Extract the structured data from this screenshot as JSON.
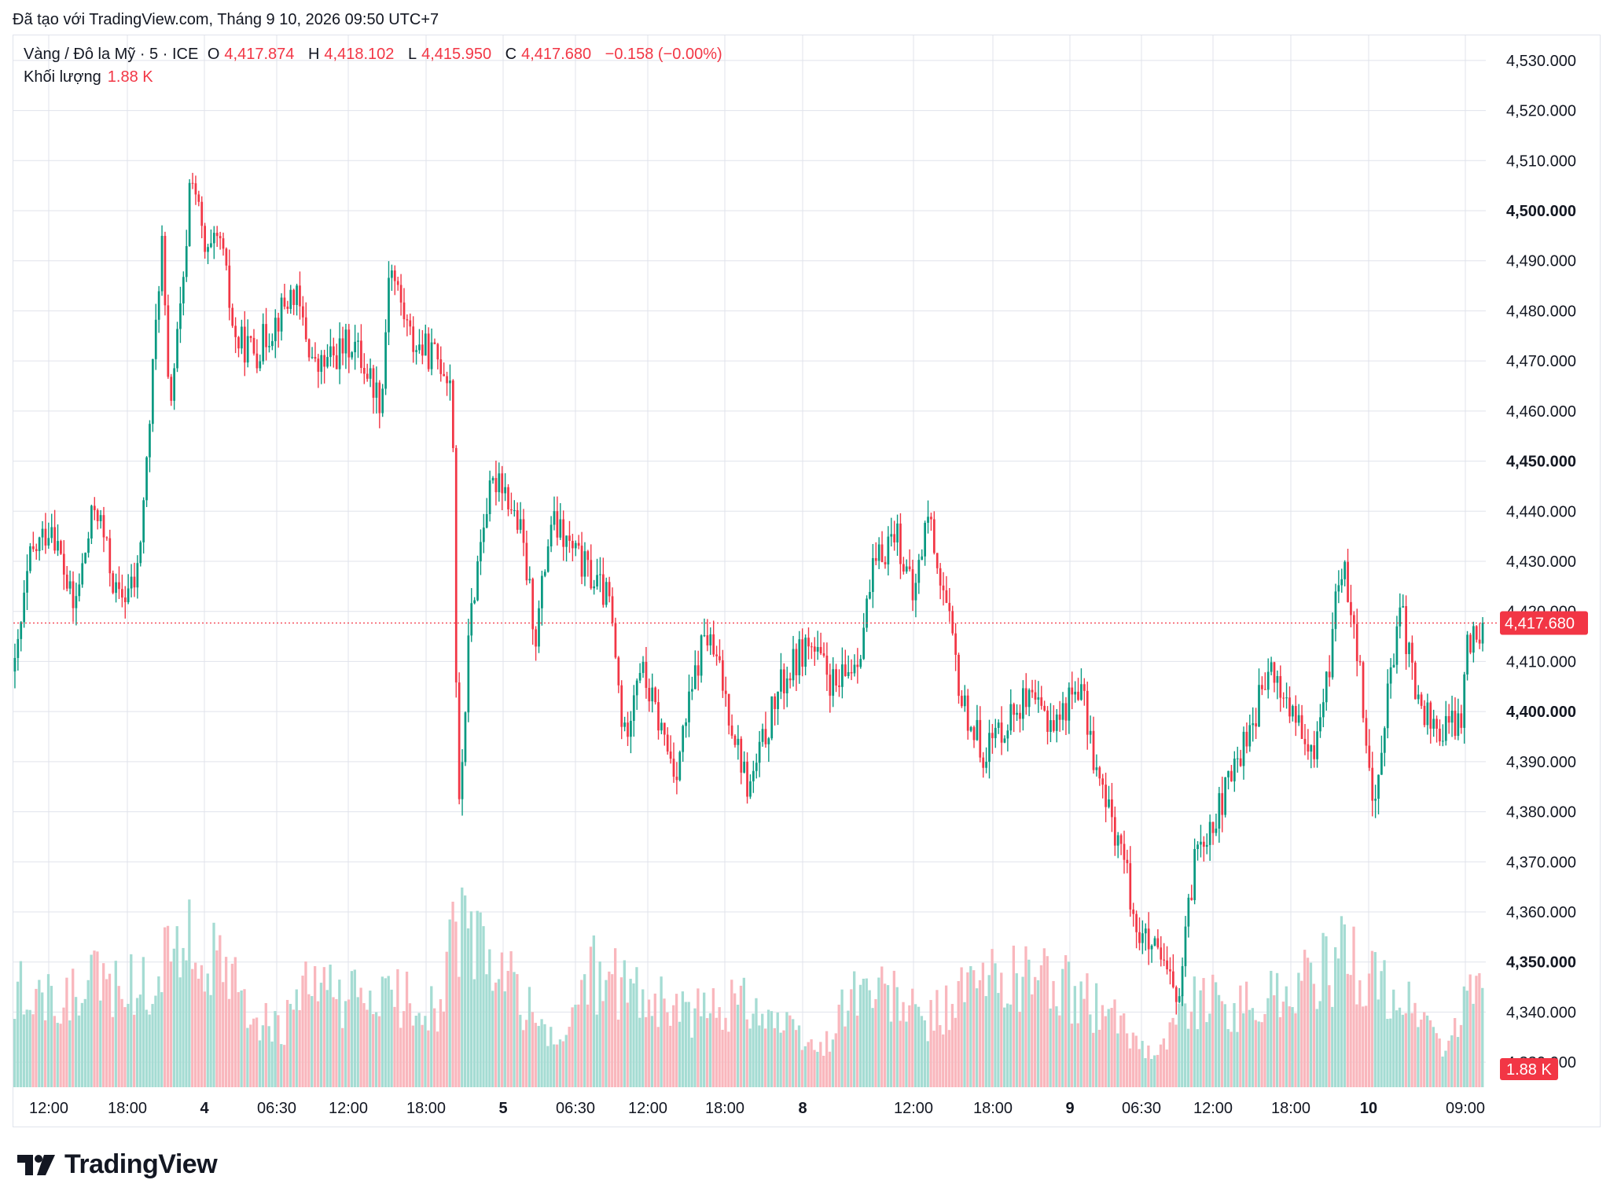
{
  "header": {
    "created_with": "Đã tạo với TradingView.com, Tháng 9 10, 2026 09:50 UTC+7"
  },
  "legend": {
    "symbol": "Vàng / Đô la Mỹ · 5 · ICE",
    "open_label": "O",
    "open": "4,417.874",
    "high_label": "H",
    "high": "4,418.102",
    "low_label": "L",
    "low": "4,415.950",
    "close_label": "C",
    "close": "4,417.680",
    "change": "−0.158 (−0.00%)",
    "volume_label": "Khối lượng",
    "volume": "1.88 K"
  },
  "colors": {
    "up": "#089981",
    "down": "#f23645",
    "up_vol": "#a5dcd3",
    "down_vol": "#f9b7bd",
    "grid": "#e0e3eb"
  },
  "logo": {
    "name": "tradingview-logo",
    "text": "TradingView"
  },
  "chart_data": {
    "type": "candlestick",
    "interval": "5",
    "y_axis": {
      "ylim": [
        4325,
        4535
      ],
      "ticks": [
        {
          "label": "4,530.000",
          "value": 4530,
          "bold": false
        },
        {
          "label": "4,520.000",
          "value": 4520,
          "bold": false
        },
        {
          "label": "4,510.000",
          "value": 4510,
          "bold": false
        },
        {
          "label": "4,500.000",
          "value": 4500,
          "bold": true
        },
        {
          "label": "4,490.000",
          "value": 4490,
          "bold": false
        },
        {
          "label": "4,480.000",
          "value": 4480,
          "bold": false
        },
        {
          "label": "4,470.000",
          "value": 4470,
          "bold": false
        },
        {
          "label": "4,460.000",
          "value": 4460,
          "bold": false
        },
        {
          "label": "4,450.000",
          "value": 4450,
          "bold": true
        },
        {
          "label": "4,440.000",
          "value": 4440,
          "bold": false
        },
        {
          "label": "4,430.000",
          "value": 4430,
          "bold": false
        },
        {
          "label": "4,420.000",
          "value": 4420,
          "bold": false
        },
        {
          "label": "4,410.000",
          "value": 4410,
          "bold": false
        },
        {
          "label": "4,400.000",
          "value": 4400,
          "bold": true
        },
        {
          "label": "4,390.000",
          "value": 4390,
          "bold": false
        },
        {
          "label": "4,380.000",
          "value": 4380,
          "bold": false
        },
        {
          "label": "4,370.000",
          "value": 4370,
          "bold": false
        },
        {
          "label": "4,360.000",
          "value": 4360,
          "bold": false
        },
        {
          "label": "4,350.000",
          "value": 4350,
          "bold": true
        },
        {
          "label": "4,340.000",
          "value": 4340,
          "bold": false
        },
        {
          "label": "4,330.000",
          "value": 4330,
          "bold": false
        }
      ]
    },
    "x_axis": {
      "ticks": [
        {
          "label": "12:00",
          "bold": false
        },
        {
          "label": "18:00",
          "bold": false
        },
        {
          "label": "4",
          "bold": true
        },
        {
          "label": "06:30",
          "bold": false
        },
        {
          "label": "12:00",
          "bold": false
        },
        {
          "label": "18:00",
          "bold": false
        },
        {
          "label": "5",
          "bold": true
        },
        {
          "label": "06:30",
          "bold": false
        },
        {
          "label": "12:00",
          "bold": false
        },
        {
          "label": "18:00",
          "bold": false
        },
        {
          "label": "8",
          "bold": true
        },
        {
          "label": "12:00",
          "bold": false
        },
        {
          "label": "18:00",
          "bold": false
        },
        {
          "label": "9",
          "bold": true
        },
        {
          "label": "06:30",
          "bold": false
        },
        {
          "label": "12:00",
          "bold": false
        },
        {
          "label": "18:00",
          "bold": false
        },
        {
          "label": "10",
          "bold": true
        },
        {
          "label": "09:00",
          "bold": false
        }
      ]
    },
    "last_price": {
      "label": "4,417.680",
      "value": 4417.68
    },
    "last_volume": {
      "label": "1.88 K"
    },
    "price_path": [
      {
        "t": 0,
        "p": 4408
      },
      {
        "t": 0.01,
        "p": 4430
      },
      {
        "t": 0.025,
        "p": 4438
      },
      {
        "t": 0.04,
        "p": 4420
      },
      {
        "t": 0.055,
        "p": 4442
      },
      {
        "t": 0.07,
        "p": 4422
      },
      {
        "t": 0.083,
        "p": 4426
      },
      {
        "t": 0.09,
        "p": 4450
      },
      {
        "t": 0.1,
        "p": 4495
      },
      {
        "t": 0.105,
        "p": 4460
      },
      {
        "t": 0.115,
        "p": 4485
      },
      {
        "t": 0.12,
        "p": 4510
      },
      {
        "t": 0.13,
        "p": 4490
      },
      {
        "t": 0.14,
        "p": 4494
      },
      {
        "t": 0.15,
        "p": 4474
      },
      {
        "t": 0.165,
        "p": 4472
      },
      {
        "t": 0.19,
        "p": 4484
      },
      {
        "t": 0.205,
        "p": 4468
      },
      {
        "t": 0.23,
        "p": 4474
      },
      {
        "t": 0.25,
        "p": 4462
      },
      {
        "t": 0.255,
        "p": 4490
      },
      {
        "t": 0.27,
        "p": 4474
      },
      {
        "t": 0.29,
        "p": 4470
      },
      {
        "t": 0.298,
        "p": 4466
      },
      {
        "t": 0.302,
        "p": 4376
      },
      {
        "t": 0.31,
        "p": 4418
      },
      {
        "t": 0.32,
        "p": 4440
      },
      {
        "t": 0.33,
        "p": 4448
      },
      {
        "t": 0.345,
        "p": 4435
      },
      {
        "t": 0.355,
        "p": 4415
      },
      {
        "t": 0.365,
        "p": 4438
      },
      {
        "t": 0.39,
        "p": 4428
      },
      {
        "t": 0.405,
        "p": 4422
      },
      {
        "t": 0.415,
        "p": 4394
      },
      {
        "t": 0.425,
        "p": 4410
      },
      {
        "t": 0.45,
        "p": 4388
      },
      {
        "t": 0.47,
        "p": 4416
      },
      {
        "t": 0.48,
        "p": 4408
      },
      {
        "t": 0.5,
        "p": 4384
      },
      {
        "t": 0.52,
        "p": 4404
      },
      {
        "t": 0.54,
        "p": 4414
      },
      {
        "t": 0.56,
        "p": 4404
      },
      {
        "t": 0.575,
        "p": 4412
      },
      {
        "t": 0.585,
        "p": 4428
      },
      {
        "t": 0.6,
        "p": 4437
      },
      {
        "t": 0.612,
        "p": 4422
      },
      {
        "t": 0.622,
        "p": 4440
      },
      {
        "t": 0.635,
        "p": 4420
      },
      {
        "t": 0.645,
        "p": 4402
      },
      {
        "t": 0.66,
        "p": 4392
      },
      {
        "t": 0.685,
        "p": 4402
      },
      {
        "t": 0.71,
        "p": 4398
      },
      {
        "t": 0.725,
        "p": 4406
      },
      {
        "t": 0.74,
        "p": 4384
      },
      {
        "t": 0.753,
        "p": 4374
      },
      {
        "t": 0.765,
        "p": 4356
      },
      {
        "t": 0.78,
        "p": 4350
      },
      {
        "t": 0.793,
        "p": 4342
      },
      {
        "t": 0.805,
        "p": 4374
      },
      {
        "t": 0.82,
        "p": 4380
      },
      {
        "t": 0.84,
        "p": 4396
      },
      {
        "t": 0.855,
        "p": 4408
      },
      {
        "t": 0.87,
        "p": 4400
      },
      {
        "t": 0.883,
        "p": 4390
      },
      {
        "t": 0.895,
        "p": 4408
      },
      {
        "t": 0.903,
        "p": 4430
      },
      {
        "t": 0.912,
        "p": 4420
      },
      {
        "t": 0.92,
        "p": 4398
      },
      {
        "t": 0.926,
        "p": 4378
      },
      {
        "t": 0.932,
        "p": 4398
      },
      {
        "t": 0.945,
        "p": 4420
      },
      {
        "t": 0.955,
        "p": 4402
      },
      {
        "t": 0.97,
        "p": 4396
      },
      {
        "t": 0.985,
        "p": 4398
      },
      {
        "t": 0.99,
        "p": 4414
      },
      {
        "t": 1,
        "p": 4417.68
      }
    ],
    "volume_profile": [
      {
        "t": 0,
        "v": 0.55
      },
      {
        "t": 0.03,
        "v": 0.45
      },
      {
        "t": 0.06,
        "v": 0.6
      },
      {
        "t": 0.09,
        "v": 0.55
      },
      {
        "t": 0.11,
        "v": 0.85
      },
      {
        "t": 0.13,
        "v": 0.75
      },
      {
        "t": 0.16,
        "v": 0.45
      },
      {
        "t": 0.18,
        "v": 0.3
      },
      {
        "t": 0.2,
        "v": 0.55
      },
      {
        "t": 0.23,
        "v": 0.5
      },
      {
        "t": 0.26,
        "v": 0.5
      },
      {
        "t": 0.29,
        "v": 0.45
      },
      {
        "t": 0.3,
        "v": 0.9
      },
      {
        "t": 0.32,
        "v": 0.75
      },
      {
        "t": 0.35,
        "v": 0.45
      },
      {
        "t": 0.37,
        "v": 0.2
      },
      {
        "t": 0.39,
        "v": 0.65
      },
      {
        "t": 0.42,
        "v": 0.55
      },
      {
        "t": 0.46,
        "v": 0.4
      },
      {
        "t": 0.5,
        "v": 0.5
      },
      {
        "t": 0.53,
        "v": 0.3
      },
      {
        "t": 0.55,
        "v": 0.2
      },
      {
        "t": 0.57,
        "v": 0.55
      },
      {
        "t": 0.6,
        "v": 0.5
      },
      {
        "t": 0.62,
        "v": 0.35
      },
      {
        "t": 0.65,
        "v": 0.55
      },
      {
        "t": 0.69,
        "v": 0.65
      },
      {
        "t": 0.73,
        "v": 0.5
      },
      {
        "t": 0.76,
        "v": 0.3
      },
      {
        "t": 0.78,
        "v": 0.2
      },
      {
        "t": 0.8,
        "v": 0.5
      },
      {
        "t": 0.84,
        "v": 0.45
      },
      {
        "t": 0.88,
        "v": 0.6
      },
      {
        "t": 0.91,
        "v": 0.75
      },
      {
        "t": 0.93,
        "v": 0.55
      },
      {
        "t": 0.96,
        "v": 0.4
      },
      {
        "t": 0.975,
        "v": 0.2
      },
      {
        "t": 1,
        "v": 0.65
      }
    ],
    "volume_scale": 1.88
  }
}
